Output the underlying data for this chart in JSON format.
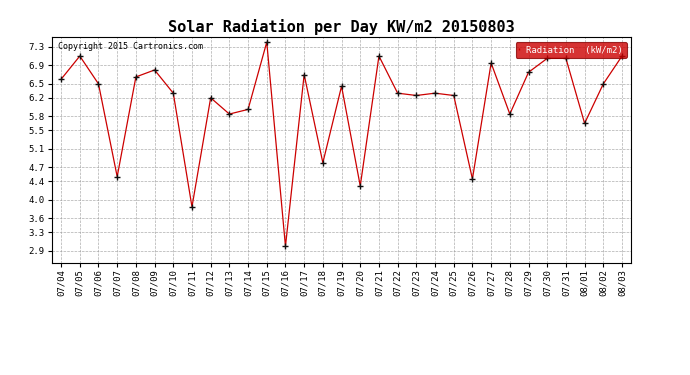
{
  "title": "Solar Radiation per Day KW/m2 20150803",
  "copyright_text": "Copyright 2015 Cartronics.com",
  "legend_label": "Radiation  (kW/m2)",
  "dates": [
    "07/04",
    "07/05",
    "07/06",
    "07/07",
    "07/08",
    "07/09",
    "07/10",
    "07/11",
    "07/12",
    "07/13",
    "07/14",
    "07/15",
    "07/16",
    "07/17",
    "07/18",
    "07/19",
    "07/20",
    "07/21",
    "07/22",
    "07/23",
    "07/24",
    "07/25",
    "07/26",
    "07/27",
    "07/28",
    "07/29",
    "07/30",
    "07/31",
    "08/01",
    "08/02",
    "08/03"
  ],
  "values": [
    6.6,
    7.1,
    6.5,
    4.5,
    6.65,
    6.8,
    6.3,
    3.85,
    6.2,
    5.85,
    5.95,
    7.4,
    3.0,
    6.7,
    4.8,
    6.45,
    4.3,
    7.1,
    6.3,
    6.25,
    6.3,
    6.25,
    4.45,
    6.95,
    5.85,
    6.75,
    7.05,
    7.05,
    5.65,
    6.5,
    7.1
  ],
  "line_color": "#cc0000",
  "marker_color": "#111111",
  "bg_color": "#ffffff",
  "plot_bg_color": "#ffffff",
  "grid_color": "#999999",
  "legend_bg": "#cc0000",
  "legend_text_color": "#ffffff",
  "yticks": [
    2.9,
    3.3,
    3.6,
    4.0,
    4.4,
    4.7,
    5.1,
    5.5,
    5.8,
    6.2,
    6.5,
    6.9,
    7.3
  ],
  "ylim": [
    2.65,
    7.5
  ],
  "title_fontsize": 11,
  "tick_fontsize": 6.5,
  "copyright_fontsize": 6,
  "legend_fontsize": 6.5
}
